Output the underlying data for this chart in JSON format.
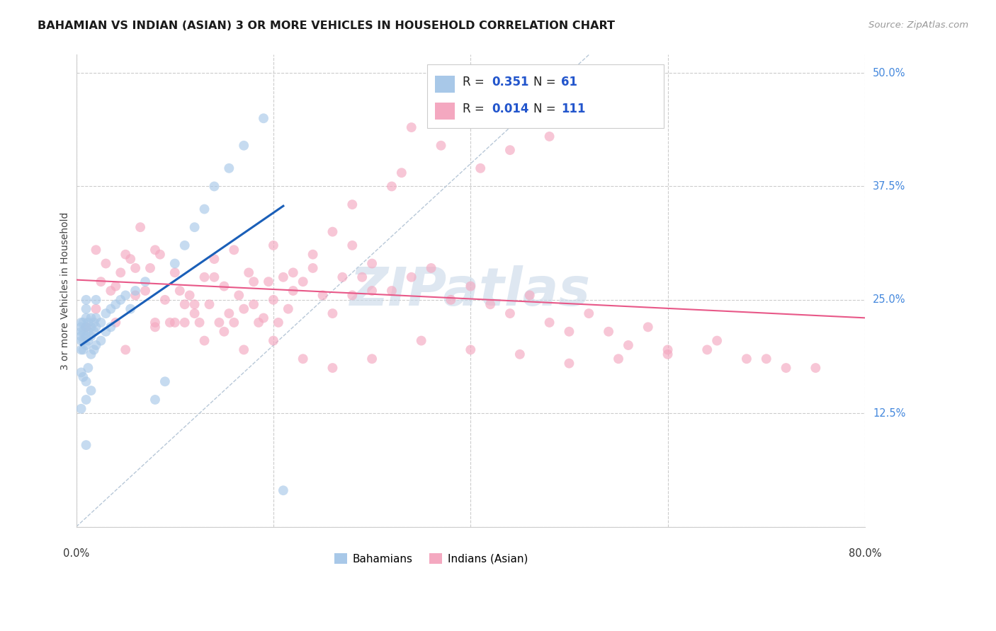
{
  "title": "BAHAMIAN VS INDIAN (ASIAN) 3 OR MORE VEHICLES IN HOUSEHOLD CORRELATION CHART",
  "source": "Source: ZipAtlas.com",
  "ylabel": "3 or more Vehicles in Household",
  "R1": 0.351,
  "N1": 61,
  "R2": 0.014,
  "N2": 111,
  "color_blue": "#a8c8e8",
  "color_pink": "#f4a8c0",
  "color_blue_line": "#1a5fb8",
  "color_pink_line": "#e85888",
  "color_diag": "#b8c8d8",
  "color_title": "#1a1a1a",
  "color_source": "#999999",
  "color_right_labels": "#4488dd",
  "color_axis_labels": "#333333",
  "watermark_color": "#c8d8e8",
  "legend_label1": "Bahamians",
  "legend_label2": "Indians (Asian)",
  "xmin": 0.0,
  "xmax": 0.8,
  "ymin": 0.0,
  "ymax": 0.52,
  "yticks": [
    0.0,
    0.125,
    0.25,
    0.375,
    0.5
  ],
  "ytick_labels": [
    "",
    "12.5%",
    "25.0%",
    "37.5%",
    "50.0%"
  ],
  "bahamian_x": [
    0.005,
    0.005,
    0.005,
    0.005,
    0.005,
    0.005,
    0.005,
    0.005,
    0.007,
    0.007,
    0.007,
    0.007,
    0.007,
    0.01,
    0.01,
    0.01,
    0.01,
    0.01,
    0.01,
    0.01,
    0.01,
    0.01,
    0.012,
    0.012,
    0.012,
    0.012,
    0.015,
    0.015,
    0.015,
    0.015,
    0.015,
    0.018,
    0.018,
    0.018,
    0.02,
    0.02,
    0.02,
    0.02,
    0.025,
    0.025,
    0.03,
    0.03,
    0.035,
    0.035,
    0.04,
    0.045,
    0.05,
    0.055,
    0.06,
    0.07,
    0.08,
    0.09,
    0.1,
    0.11,
    0.12,
    0.13,
    0.14,
    0.155,
    0.17,
    0.19,
    0.21
  ],
  "bahamian_y": [
    0.195,
    0.205,
    0.21,
    0.215,
    0.22,
    0.225,
    0.17,
    0.13,
    0.195,
    0.205,
    0.215,
    0.225,
    0.165,
    0.2,
    0.21,
    0.22,
    0.23,
    0.24,
    0.25,
    0.16,
    0.14,
    0.09,
    0.205,
    0.215,
    0.225,
    0.175,
    0.21,
    0.22,
    0.23,
    0.19,
    0.15,
    0.215,
    0.225,
    0.195,
    0.22,
    0.23,
    0.25,
    0.2,
    0.225,
    0.205,
    0.235,
    0.215,
    0.24,
    0.22,
    0.245,
    0.25,
    0.255,
    0.24,
    0.26,
    0.27,
    0.14,
    0.16,
    0.29,
    0.31,
    0.33,
    0.35,
    0.375,
    0.395,
    0.42,
    0.45,
    0.04
  ],
  "indian_x": [
    0.01,
    0.02,
    0.025,
    0.03,
    0.035,
    0.04,
    0.045,
    0.05,
    0.055,
    0.06,
    0.065,
    0.07,
    0.075,
    0.08,
    0.085,
    0.09,
    0.095,
    0.1,
    0.105,
    0.11,
    0.115,
    0.12,
    0.125,
    0.13,
    0.135,
    0.14,
    0.145,
    0.15,
    0.155,
    0.16,
    0.165,
    0.17,
    0.175,
    0.18,
    0.185,
    0.19,
    0.195,
    0.2,
    0.205,
    0.21,
    0.215,
    0.22,
    0.23,
    0.24,
    0.25,
    0.26,
    0.27,
    0.28,
    0.29,
    0.3,
    0.02,
    0.04,
    0.06,
    0.08,
    0.1,
    0.12,
    0.14,
    0.16,
    0.18,
    0.2,
    0.22,
    0.24,
    0.26,
    0.28,
    0.3,
    0.32,
    0.34,
    0.36,
    0.38,
    0.4,
    0.42,
    0.44,
    0.46,
    0.48,
    0.5,
    0.52,
    0.54,
    0.56,
    0.58,
    0.6,
    0.05,
    0.08,
    0.11,
    0.13,
    0.15,
    0.17,
    0.2,
    0.23,
    0.26,
    0.3,
    0.35,
    0.4,
    0.45,
    0.5,
    0.55,
    0.6,
    0.65,
    0.7,
    0.75,
    0.64,
    0.68,
    0.72,
    0.34,
    0.38,
    0.28,
    0.32,
    0.44,
    0.48,
    0.33,
    0.37,
    0.41
  ],
  "indian_y": [
    0.22,
    0.24,
    0.27,
    0.29,
    0.26,
    0.225,
    0.28,
    0.3,
    0.295,
    0.255,
    0.33,
    0.26,
    0.285,
    0.22,
    0.3,
    0.25,
    0.225,
    0.28,
    0.26,
    0.245,
    0.255,
    0.235,
    0.225,
    0.275,
    0.245,
    0.295,
    0.225,
    0.265,
    0.235,
    0.225,
    0.255,
    0.24,
    0.28,
    0.245,
    0.225,
    0.23,
    0.27,
    0.25,
    0.225,
    0.275,
    0.24,
    0.26,
    0.27,
    0.285,
    0.255,
    0.235,
    0.275,
    0.255,
    0.275,
    0.26,
    0.305,
    0.265,
    0.285,
    0.305,
    0.225,
    0.245,
    0.275,
    0.305,
    0.27,
    0.31,
    0.28,
    0.3,
    0.325,
    0.31,
    0.29,
    0.26,
    0.275,
    0.285,
    0.25,
    0.265,
    0.245,
    0.235,
    0.255,
    0.225,
    0.215,
    0.235,
    0.215,
    0.2,
    0.22,
    0.195,
    0.195,
    0.225,
    0.225,
    0.205,
    0.215,
    0.195,
    0.205,
    0.185,
    0.175,
    0.185,
    0.205,
    0.195,
    0.19,
    0.18,
    0.185,
    0.19,
    0.205,
    0.185,
    0.175,
    0.195,
    0.185,
    0.175,
    0.44,
    0.47,
    0.355,
    0.375,
    0.415,
    0.43,
    0.39,
    0.42,
    0.395
  ]
}
